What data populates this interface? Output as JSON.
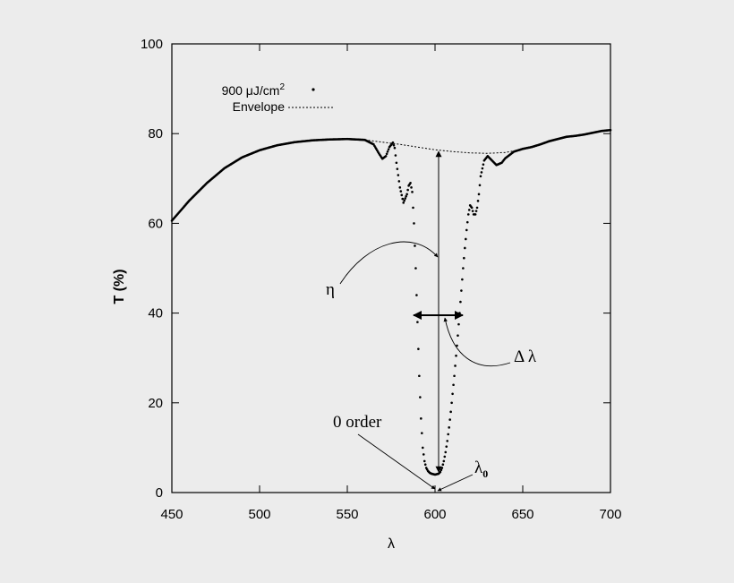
{
  "chart_data": {
    "type": "scatter",
    "xlabel": "λ",
    "ylabel": "T (%)",
    "xlim": [
      450,
      700
    ],
    "ylim": [
      0,
      100
    ],
    "xticks": [
      "450",
      "500",
      "550",
      "600",
      "650",
      "700"
    ],
    "yticks": [
      "0",
      "20",
      "40",
      "60",
      "80",
      "100"
    ],
    "grid": false,
    "legend_position": "top-left",
    "series": [
      {
        "name": "900 μJ/cm²",
        "style": "dots",
        "points": [
          [
            450,
            60.6
          ],
          [
            460,
            65.1
          ],
          [
            470,
            69.0
          ],
          [
            480,
            72.3
          ],
          [
            490,
            74.7
          ],
          [
            500,
            76.3
          ],
          [
            510,
            77.4
          ],
          [
            520,
            78.1
          ],
          [
            530,
            78.5
          ],
          [
            540,
            78.7
          ],
          [
            550,
            78.8
          ],
          [
            555,
            78.7
          ],
          [
            560,
            78.6
          ],
          [
            565,
            77.6
          ],
          [
            568,
            75.6
          ],
          [
            570,
            74.4
          ],
          [
            572,
            75.0
          ],
          [
            574,
            77.0
          ],
          [
            576,
            78.0
          ],
          [
            577,
            76.8
          ],
          [
            578,
            73.5
          ],
          [
            580,
            68.0
          ],
          [
            582,
            64.6
          ],
          [
            584,
            66.5
          ],
          [
            585,
            68.4
          ],
          [
            586,
            69.0
          ],
          [
            587,
            67.0
          ],
          [
            588,
            60.0
          ],
          [
            589,
            50.0
          ],
          [
            590,
            38.0
          ],
          [
            591,
            26.0
          ],
          [
            592,
            16.5
          ],
          [
            593,
            10.0
          ],
          [
            594,
            7.0
          ],
          [
            595,
            5.5
          ],
          [
            596,
            4.8
          ],
          [
            597,
            4.4
          ],
          [
            598,
            4.2
          ],
          [
            599,
            4.1
          ],
          [
            600,
            4.0
          ],
          [
            601,
            4.1
          ],
          [
            602,
            4.2
          ],
          [
            603,
            4.6
          ],
          [
            604,
            5.5
          ],
          [
            605,
            7.0
          ],
          [
            606,
            9.0
          ],
          [
            607,
            11.5
          ],
          [
            608,
            14.5
          ],
          [
            609,
            18.0
          ],
          [
            610,
            22.0
          ],
          [
            611,
            26.0
          ],
          [
            612,
            30.5
          ],
          [
            613,
            35.0
          ],
          [
            614,
            40.0
          ],
          [
            615,
            45.0
          ],
          [
            616,
            50.0
          ],
          [
            617,
            54.5
          ],
          [
            618,
            58.5
          ],
          [
            619,
            62.0
          ],
          [
            620,
            64.0
          ],
          [
            621,
            63.5
          ],
          [
            622,
            62.0
          ],
          [
            623,
            62.0
          ],
          [
            624,
            63.5
          ],
          [
            625,
            66.5
          ],
          [
            626,
            70.5
          ],
          [
            628,
            74.0
          ],
          [
            630,
            75.0
          ],
          [
            632,
            74.2
          ],
          [
            635,
            73.0
          ],
          [
            638,
            73.5
          ],
          [
            640,
            74.5
          ],
          [
            645,
            76.0
          ],
          [
            650,
            76.6
          ],
          [
            655,
            77.0
          ],
          [
            660,
            77.6
          ],
          [
            665,
            78.3
          ],
          [
            670,
            78.8
          ],
          [
            675,
            79.3
          ],
          [
            680,
            79.5
          ],
          [
            685,
            79.8
          ],
          [
            690,
            80.2
          ],
          [
            695,
            80.6
          ],
          [
            700,
            80.8
          ]
        ]
      },
      {
        "name": "Envelope",
        "style": "dashed",
        "points": [
          [
            560,
            78.6
          ],
          [
            570,
            78.1
          ],
          [
            580,
            77.6
          ],
          [
            590,
            77.0
          ],
          [
            600,
            76.4
          ],
          [
            610,
            76.0
          ],
          [
            620,
            75.7
          ],
          [
            630,
            75.6
          ],
          [
            640,
            75.8
          ],
          [
            650,
            76.5
          ]
        ]
      }
    ],
    "annotations": {
      "eta": "η",
      "delta_lambda": "Δ λ",
      "zero_order": "0 order",
      "lambda0": "λ",
      "lambda0_sub": "0"
    },
    "legend": {
      "entry1_text": "900 μJ/cm",
      "entry1_sup": "2",
      "entry2_text": "Envelope"
    }
  }
}
